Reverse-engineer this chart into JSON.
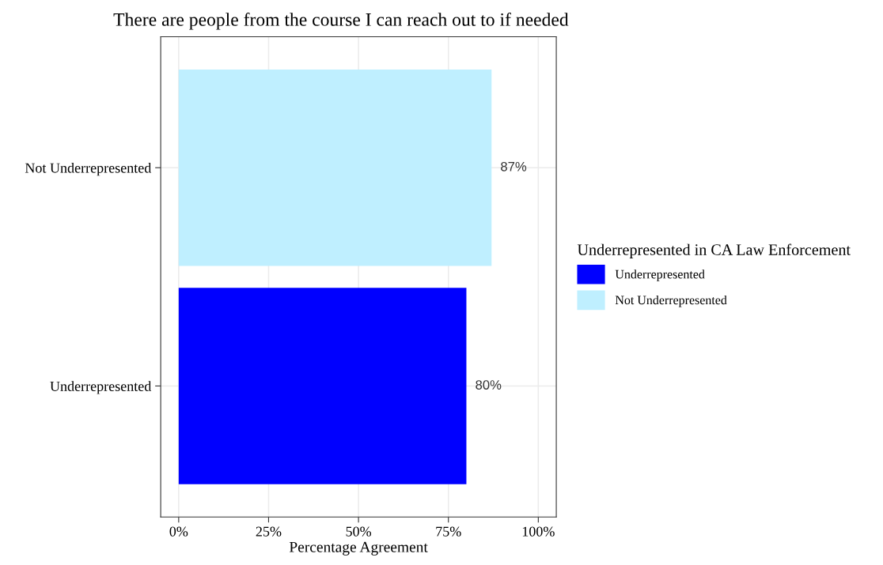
{
  "chart_data": {
    "type": "bar",
    "orientation": "horizontal",
    "title": "There are people from the course I can reach out to if needed",
    "xlabel": "Percentage Agreement",
    "legend_title": "Underrepresented in CA Law Enforcement",
    "categories": [
      "Not Underrepresented",
      "Underrepresented"
    ],
    "series": [
      {
        "name": "Underrepresented",
        "color": "#0000ff",
        "values": [
          null,
          80
        ],
        "value_labels": [
          null,
          "80%"
        ]
      },
      {
        "name": "Not Underrepresented",
        "color": "#bfefff",
        "values": [
          87,
          null
        ],
        "value_labels": [
          "87%",
          null
        ]
      }
    ],
    "xlim": [
      -5,
      105
    ],
    "xticks": [
      {
        "value": 0,
        "label": "0%"
      },
      {
        "value": 25,
        "label": "25%"
      },
      {
        "value": 50,
        "label": "50%"
      },
      {
        "value": 75,
        "label": "75%"
      },
      {
        "value": 100,
        "label": "100%"
      }
    ],
    "grid": true,
    "legend": "right"
  }
}
